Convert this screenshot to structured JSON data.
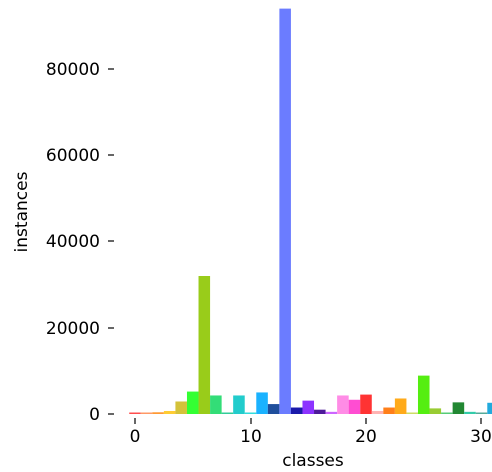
{
  "chart_data": {
    "type": "bar",
    "xlabel": "classes",
    "ylabel": "instances",
    "xlim": [
      -1,
      31
    ],
    "ylim": [
      0,
      94000
    ],
    "xticks": [
      "0",
      "10",
      "20",
      "30"
    ],
    "yticks": [
      "0",
      "20000",
      "40000",
      "60000",
      "80000"
    ],
    "grid": false,
    "legend": "none",
    "bars": [
      {
        "x": 0,
        "value": 300,
        "color": "#ff4d4d"
      },
      {
        "x": 1,
        "value": 150,
        "color": "#ff9966"
      },
      {
        "x": 2,
        "value": 400,
        "color": "#ff9933"
      },
      {
        "x": 3,
        "value": 700,
        "color": "#ffcc33"
      },
      {
        "x": 4,
        "value": 2900,
        "color": "#d4c23a"
      },
      {
        "x": 5,
        "value": 5200,
        "color": "#33ff33"
      },
      {
        "x": 6,
        "value": 32000,
        "color": "#99cc1a"
      },
      {
        "x": 7,
        "value": 4300,
        "color": "#33dd77"
      },
      {
        "x": 8,
        "value": 100,
        "color": "#33cc99"
      },
      {
        "x": 9,
        "value": 4300,
        "color": "#22cccc"
      },
      {
        "x": 10,
        "value": 100,
        "color": "#33dddd"
      },
      {
        "x": 11,
        "value": 5000,
        "color": "#1ab2ff"
      },
      {
        "x": 12,
        "value": 2300,
        "color": "#1f4e9c"
      },
      {
        "x": 13,
        "value": 94000,
        "color": "#6b7cff"
      },
      {
        "x": 14,
        "value": 1500,
        "color": "#1a1aaa"
      },
      {
        "x": 15,
        "value": 3100,
        "color": "#8c33ff"
      },
      {
        "x": 16,
        "value": 1000,
        "color": "#4d1a99"
      },
      {
        "x": 17,
        "value": 500,
        "color": "#cc66ff"
      },
      {
        "x": 18,
        "value": 4300,
        "color": "#ff8ce6"
      },
      {
        "x": 19,
        "value": 3300,
        "color": "#ff4dd2"
      },
      {
        "x": 20,
        "value": 4500,
        "color": "#ff3333"
      },
      {
        "x": 21,
        "value": 700,
        "color": "#ffb3b3"
      },
      {
        "x": 22,
        "value": 1500,
        "color": "#ff7f1a"
      },
      {
        "x": 23,
        "value": 3600,
        "color": "#ffaa1a"
      },
      {
        "x": 24,
        "value": 300,
        "color": "#ccdd66"
      },
      {
        "x": 25,
        "value": 8900,
        "color": "#55ee11"
      },
      {
        "x": 26,
        "value": 1300,
        "color": "#99cc33"
      },
      {
        "x": 27,
        "value": 150,
        "color": "#55cc77"
      },
      {
        "x": 28,
        "value": 2700,
        "color": "#228833"
      },
      {
        "x": 29,
        "value": 500,
        "color": "#33ccaa"
      },
      {
        "x": 30,
        "value": 300,
        "color": "#55aa99"
      },
      {
        "x": 31,
        "value": 2600,
        "color": "#22aadd"
      }
    ]
  }
}
